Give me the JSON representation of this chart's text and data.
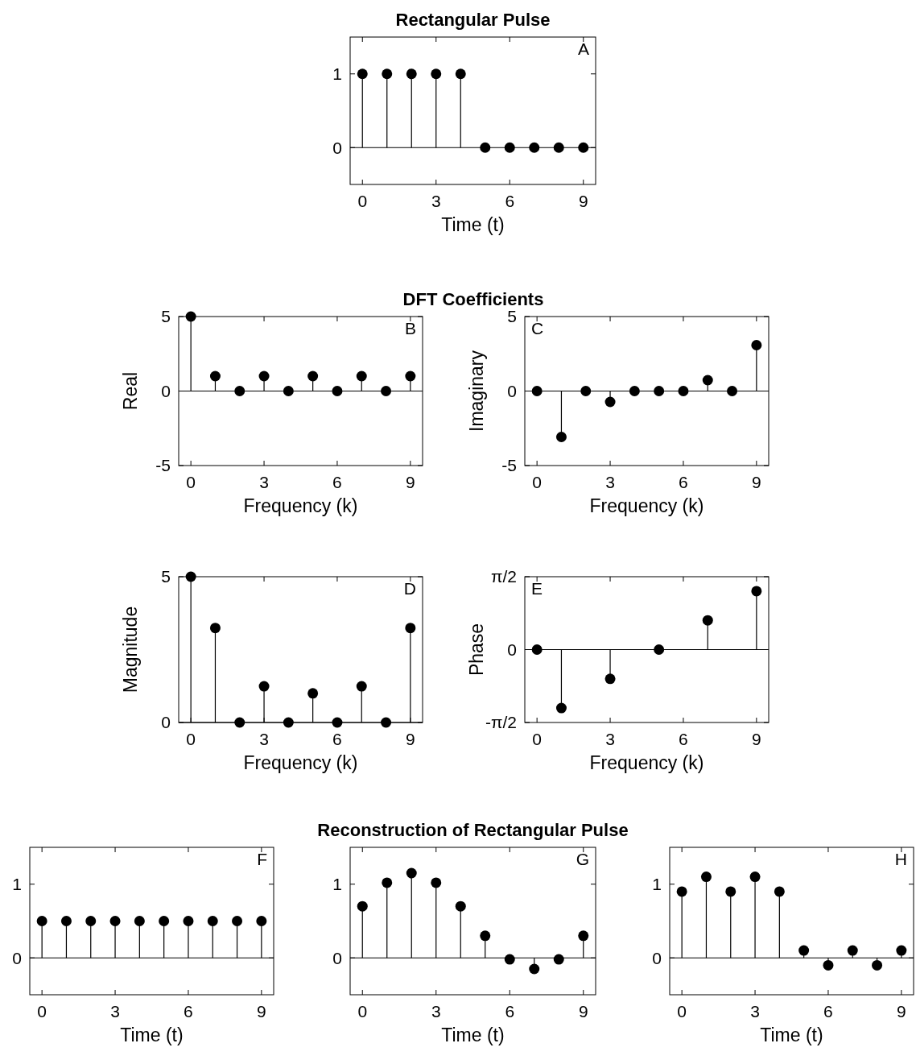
{
  "chart_data": [
    {
      "type": "lollipop",
      "title": "Rectangular Pulse",
      "xlabel": "Time (t)",
      "annotations": [
        "A"
      ],
      "marker": "circle",
      "color": "#000000",
      "x": [
        0,
        1,
        2,
        3,
        4,
        5,
        6,
        7,
        8,
        9
      ],
      "values": [
        1,
        1,
        1,
        1,
        1,
        0,
        0,
        0,
        0,
        0
      ],
      "xlim": [
        -0.5,
        9.5
      ],
      "ylim": [
        -0.5,
        1.5
      ],
      "xticks": [
        0,
        3,
        6,
        9
      ],
      "yticks": [
        0,
        1
      ]
    },
    {
      "type": "lollipop",
      "title": "DFT Coefficients",
      "xlabel": "Frequency (k)",
      "ylabel": "Real",
      "annotations": [
        "B"
      ],
      "marker": "circle",
      "color": "#000000",
      "x": [
        0,
        1,
        2,
        3,
        4,
        5,
        6,
        7,
        8,
        9
      ],
      "values": [
        5,
        1,
        0,
        1,
        0,
        1,
        0,
        1,
        0,
        1
      ],
      "xlim": [
        -0.5,
        9.5
      ],
      "ylim": [
        -5,
        5
      ],
      "xticks": [
        0,
        3,
        6,
        9
      ],
      "yticks": [
        -5,
        0,
        5
      ]
    },
    {
      "type": "lollipop",
      "xlabel": "Frequency (k)",
      "ylabel": "Imaginary",
      "annotations": [
        "C"
      ],
      "marker": "circle",
      "color": "#000000",
      "x": [
        0,
        1,
        2,
        3,
        4,
        5,
        6,
        7,
        8,
        9
      ],
      "values": [
        0,
        -3.08,
        0,
        -0.73,
        0,
        0,
        0,
        0.73,
        0,
        3.08
      ],
      "xlim": [
        -0.5,
        9.5
      ],
      "ylim": [
        -5,
        5
      ],
      "xticks": [
        0,
        3,
        6,
        9
      ],
      "yticks": [
        -5,
        0,
        5
      ]
    },
    {
      "type": "lollipop",
      "xlabel": "Frequency (k)",
      "ylabel": "Magnitude",
      "annotations": [
        "D"
      ],
      "marker": "circle",
      "color": "#000000",
      "x": [
        0,
        1,
        2,
        3,
        4,
        5,
        6,
        7,
        8,
        9
      ],
      "values": [
        5,
        3.24,
        0,
        1.24,
        0,
        1,
        0,
        1.24,
        0,
        3.24
      ],
      "xlim": [
        -0.5,
        9.5
      ],
      "ylim": [
        0,
        5
      ],
      "xticks": [
        0,
        3,
        6,
        9
      ],
      "yticks": [
        0,
        5
      ]
    },
    {
      "type": "lollipop",
      "xlabel": "Frequency (k)",
      "ylabel": "Phase",
      "annotations": [
        "E"
      ],
      "marker": "circle",
      "color": "#000000",
      "x": [
        0,
        1,
        2,
        3,
        4,
        5,
        6,
        7,
        8,
        9
      ],
      "values": [
        0,
        -1.26,
        null,
        -0.63,
        null,
        0,
        null,
        0.63,
        null,
        1.26
      ],
      "xlim": [
        -0.5,
        9.5
      ],
      "ylim": [
        -1.5708,
        1.5708
      ],
      "xticks": [
        0,
        3,
        6,
        9
      ],
      "yticks": [
        {
          "value": -1.5708,
          "label": "-π/2"
        },
        0,
        {
          "value": 1.5708,
          "label": "π/2"
        }
      ]
    },
    {
      "type": "lollipop",
      "xlabel": "Time (t)",
      "annotations": [
        "F"
      ],
      "marker": "circle",
      "color": "#000000",
      "x": [
        0,
        1,
        2,
        3,
        4,
        5,
        6,
        7,
        8,
        9
      ],
      "values": [
        0.5,
        0.5,
        0.5,
        0.5,
        0.5,
        0.5,
        0.5,
        0.5,
        0.5,
        0.5
      ],
      "xlim": [
        -0.5,
        9.5
      ],
      "ylim": [
        -0.5,
        1.5
      ],
      "xticks": [
        0,
        3,
        6,
        9
      ],
      "yticks": [
        0,
        1
      ]
    },
    {
      "type": "lollipop",
      "title": "Reconstruction of Rectangular Pulse",
      "xlabel": "Time (t)",
      "annotations": [
        "G"
      ],
      "marker": "circle",
      "color": "#000000",
      "x": [
        0,
        1,
        2,
        3,
        4,
        5,
        6,
        7,
        8,
        9
      ],
      "values": [
        0.7,
        1.02,
        1.15,
        1.02,
        0.7,
        0.3,
        -0.02,
        -0.15,
        -0.02,
        0.3
      ],
      "xlim": [
        -0.5,
        9.5
      ],
      "ylim": [
        -0.5,
        1.5
      ],
      "xticks": [
        0,
        3,
        6,
        9
      ],
      "yticks": [
        0,
        1
      ]
    },
    {
      "type": "lollipop",
      "xlabel": "Time (t)",
      "annotations": [
        "H"
      ],
      "marker": "circle",
      "color": "#000000",
      "x": [
        0,
        1,
        2,
        3,
        4,
        5,
        6,
        7,
        8,
        9
      ],
      "values": [
        0.9,
        1.1,
        0.9,
        1.1,
        0.9,
        0.1,
        -0.1,
        0.1,
        -0.1,
        0.1
      ],
      "xlim": [
        -0.5,
        9.5
      ],
      "ylim": [
        -0.5,
        1.5
      ],
      "xticks": [
        0,
        3,
        6,
        9
      ],
      "yticks": [
        0,
        1
      ]
    }
  ]
}
